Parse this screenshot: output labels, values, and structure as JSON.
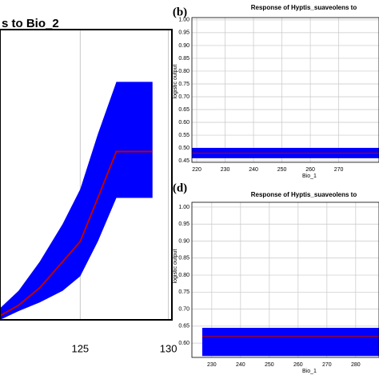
{
  "chart_data": [
    {
      "type": "band-line",
      "title": "s to Bio_2",
      "x": [
        120.45,
        121.5,
        122.7,
        124,
        125,
        126,
        127.05,
        129.1
      ],
      "mean": [
        0.014,
        0.05,
        0.11,
        0.2,
        0.27,
        0.42,
        0.58,
        0.58
      ],
      "lower": [
        0,
        0.03,
        0.06,
        0.1,
        0.15,
        0.27,
        0.42,
        0.42
      ],
      "upper": [
        0.04,
        0.1,
        0.2,
        0.33,
        0.45,
        0.64,
        0.82,
        0.82
      ],
      "band_color": "#0000ff",
      "line_color": "#c00000",
      "xlim": [
        120.45,
        130.2
      ],
      "ylim": [
        0,
        1
      ],
      "xticks": [
        125,
        130
      ],
      "grid": true
    },
    {
      "type": "band-line",
      "label": "(b)",
      "title": "Response of Hyptis_suaveolens to",
      "x_label": "Bio_1",
      "y_label": "logistic output",
      "x": [
        218.3,
        284.2
      ],
      "mean": [
        0.48,
        0.48
      ],
      "lower": [
        0.46,
        0.46
      ],
      "upper": [
        0.5,
        0.5
      ],
      "band_color": "#0000ff",
      "line_color": "#c00000",
      "xlim": [
        218.3,
        284.2
      ],
      "ylim": [
        0.444,
        1.009
      ],
      "xticks": [
        220,
        230,
        240,
        250,
        260,
        270
      ],
      "yticks": [
        {
          "value": 0.45,
          "label": "0.45"
        },
        {
          "value": 0.5,
          "label": "0.50"
        },
        {
          "value": 0.55,
          "label": "0.55"
        },
        {
          "value": 0.6,
          "label": "0.60"
        },
        {
          "value": 0.65,
          "label": "0.65"
        },
        {
          "value": 0.7,
          "label": "0.70"
        },
        {
          "value": 0.75,
          "label": "0.75"
        },
        {
          "value": 0.8,
          "label": "0.80"
        },
        {
          "value": 0.85,
          "label": "0.85"
        },
        {
          "value": 0.9,
          "label": "0.90"
        },
        {
          "value": 0.95,
          "label": "0.95"
        },
        {
          "value": 1,
          "label": "1.00"
        }
      ],
      "grid": true
    },
    {
      "type": "band-line",
      "label": "(d)",
      "title": "Response of Hyptis_suaveolens to",
      "x_label": "Bio_1",
      "y_label": "logistic output",
      "x": [
        226.7,
        288.1
      ],
      "mean": [
        0.62,
        0.62
      ],
      "lower": [
        0.562,
        0.562
      ],
      "upper": [
        0.645,
        0.645
      ],
      "band_color": "#0000ff",
      "line_color": "#c00000",
      "xlim": [
        223.1,
        288.1
      ],
      "ylim": [
        0.558,
        1.014
      ],
      "xticks": [
        230,
        240,
        250,
        260,
        270,
        280
      ],
      "yticks": [
        {
          "value": 0.6,
          "label": "0.60"
        },
        {
          "value": 0.65,
          "label": "0.65"
        },
        {
          "value": 0.7,
          "label": "0.70"
        },
        {
          "value": 0.75,
          "label": "0.75"
        },
        {
          "value": 0.8,
          "label": "0.80"
        },
        {
          "value": 0.85,
          "label": "0.85"
        },
        {
          "value": 0.9,
          "label": "0.90"
        },
        {
          "value": 0.95,
          "label": "0.95"
        },
        {
          "value": 1,
          "label": "1.00"
        }
      ],
      "grid": true
    }
  ]
}
